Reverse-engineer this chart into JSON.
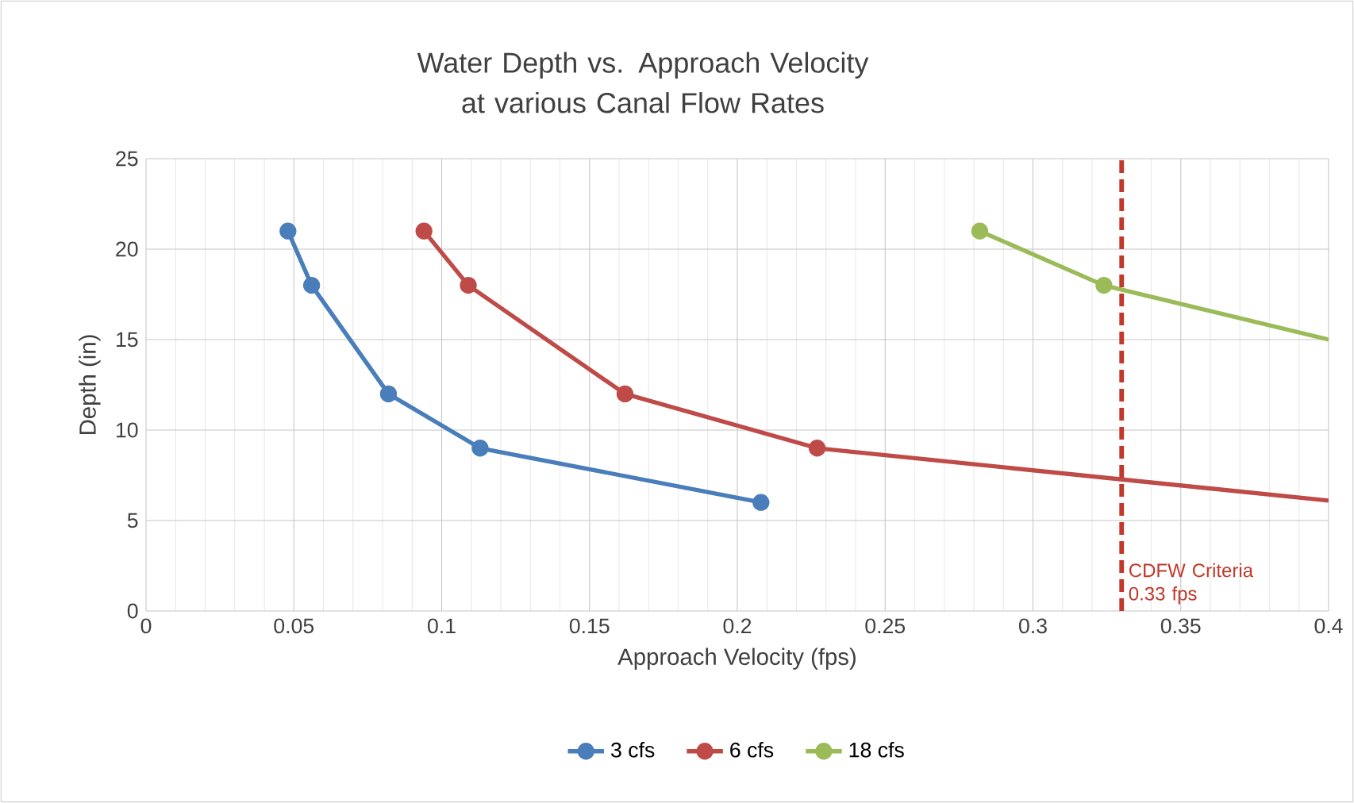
{
  "chart_data": {
    "type": "line",
    "title": "Water Depth vs. Approach Velocity at various Canal Flow Rates",
    "xlabel": "Approach Velocity (fps)",
    "ylabel": "Depth (in)",
    "series": [
      {
        "name": "3 cfs",
        "color": "#4a7ebb",
        "x": [
          0.048,
          0.056,
          0.082,
          0.113,
          0.208
        ],
        "values": [
          21,
          18,
          12,
          9,
          6
        ]
      },
      {
        "name": "6 cfs",
        "color": "#be4b48",
        "x": [
          0.094,
          0.109,
          0.162,
          0.227,
          0.4
        ],
        "values": [
          21,
          18,
          12,
          9,
          6.1
        ]
      },
      {
        "name": "18 cfs",
        "color": "#9bbb59",
        "x": [
          0.282,
          0.324,
          0.4
        ],
        "values": [
          21,
          18,
          15
        ]
      }
    ],
    "xlim": [
      0,
      0.4
    ],
    "xticks": [
      0,
      0.05,
      0.1,
      0.15,
      0.2,
      0.25,
      0.3,
      0.35,
      0.4
    ],
    "ylim": [
      0,
      25
    ],
    "yticks": [
      0,
      5,
      10,
      15,
      20,
      25
    ],
    "ref_lines": [
      {
        "axis": "x",
        "value": 0.33,
        "label": "CDFW Criteria 0.33 fps",
        "color": "#c0392b",
        "line_style": "dashed"
      }
    ],
    "grid": true,
    "legend": "bottom",
    "marker": "circle",
    "line_style": "solid"
  }
}
